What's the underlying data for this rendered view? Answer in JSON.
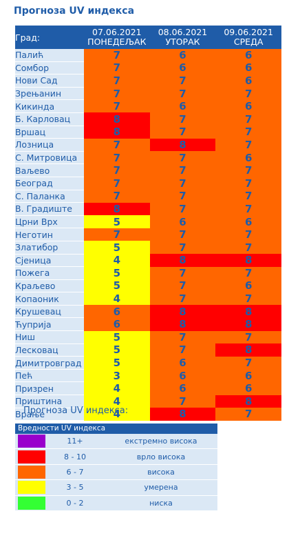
{
  "title": "Прогноза UV индекса",
  "table": {
    "city_header": "Град:",
    "days": [
      {
        "date": "07.06.2021",
        "weekday": "ПОНЕДЕЉАК"
      },
      {
        "date": "08.06.2021",
        "weekday": "УТОРАК"
      },
      {
        "date": "09.06.2021",
        "weekday": "СРЕДА"
      }
    ],
    "rows": [
      {
        "city": "Палић",
        "values": [
          7,
          6,
          6
        ]
      },
      {
        "city": "Сомбор",
        "values": [
          7,
          6,
          6
        ]
      },
      {
        "city": "Нови Сад",
        "values": [
          7,
          7,
          6
        ]
      },
      {
        "city": "Зрењанин",
        "values": [
          7,
          7,
          7
        ]
      },
      {
        "city": "Кикинда",
        "values": [
          7,
          6,
          6
        ]
      },
      {
        "city": "Б. Карловац",
        "values": [
          8,
          7,
          7
        ]
      },
      {
        "city": "Вршац",
        "values": [
          8,
          7,
          7
        ]
      },
      {
        "city": "Лозница",
        "values": [
          7,
          8,
          7
        ]
      },
      {
        "city": "С. Митровица",
        "values": [
          7,
          7,
          6
        ]
      },
      {
        "city": "Ваљево",
        "values": [
          7,
          7,
          7
        ]
      },
      {
        "city": "Београд",
        "values": [
          7,
          7,
          7
        ]
      },
      {
        "city": "С. Паланка",
        "values": [
          7,
          7,
          7
        ]
      },
      {
        "city": "В. Градиште",
        "values": [
          8,
          7,
          7
        ]
      },
      {
        "city": "Црни Врх",
        "values": [
          5,
          6,
          6
        ]
      },
      {
        "city": "Неготин",
        "values": [
          7,
          7,
          7
        ]
      },
      {
        "city": "Златибор",
        "values": [
          5,
          7,
          7
        ]
      },
      {
        "city": "Сјеница",
        "values": [
          4,
          8,
          8
        ]
      },
      {
        "city": "Пожега",
        "values": [
          5,
          7,
          7
        ]
      },
      {
        "city": "Краљево",
        "values": [
          5,
          7,
          6
        ]
      },
      {
        "city": "Копаоник",
        "values": [
          4,
          7,
          7
        ]
      },
      {
        "city": "Крушевац",
        "values": [
          6,
          8,
          8
        ]
      },
      {
        "city": "Ћуприја",
        "values": [
          6,
          8,
          8
        ]
      },
      {
        "city": "Ниш",
        "values": [
          5,
          7,
          7
        ]
      },
      {
        "city": "Лесковац",
        "values": [
          5,
          7,
          8
        ]
      },
      {
        "city": "Димитровград",
        "values": [
          5,
          6,
          7
        ]
      },
      {
        "city": "Пећ",
        "values": [
          3,
          6,
          6
        ]
      },
      {
        "city": "Призрен",
        "values": [
          4,
          6,
          6
        ]
      },
      {
        "city": "Приштина",
        "values": [
          4,
          7,
          8
        ]
      },
      {
        "city": "Врање",
        "values": [
          4,
          8,
          7
        ]
      }
    ]
  },
  "legend": {
    "subtitle": "Прогноза UV индекса:",
    "header": "Вредности UV индекса",
    "items": [
      {
        "range": "11+",
        "label": "екстремно висока",
        "color": "#9900cc"
      },
      {
        "range": "8 - 10",
        "label": "врло висока",
        "color": "#ff0000"
      },
      {
        "range": "6 - 7",
        "label": "висока",
        "color": "#ff6600"
      },
      {
        "range": "3 - 5",
        "label": "умерена",
        "color": "#ffff00"
      },
      {
        "range": "0 - 2",
        "label": "ниска",
        "color": "#33ff33"
      }
    ]
  }
}
